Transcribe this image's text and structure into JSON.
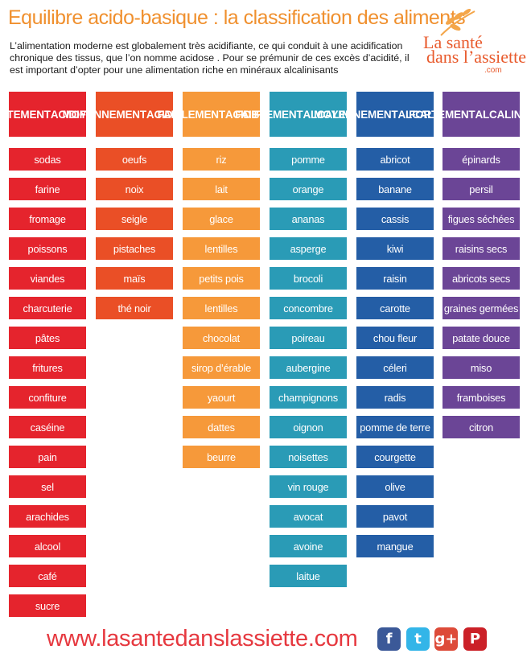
{
  "title": "Equilibre acido-basique : la classification des aliments",
  "intro": "L’alimentation moderne est globalement très acidifiante, ce qui conduit à une acidification chronique des tissus, que l’on nomme acidose . Pour se prémunir de ces excès d’acidité, il est important d’opter pour une alimentation riche en minéraux alcalinisants",
  "logo": {
    "line1": "La santé",
    "line2": "dans l’assiette",
    "line3": ".com",
    "icon": "wheat-leaf-icon"
  },
  "columns": [
    {
      "head1": "FORTEMENT",
      "head2": "ACIDIFIANT",
      "color": "#e5242d",
      "items": [
        "sodas",
        "farine",
        "fromage",
        "poissons",
        "viandes",
        "charcuterie",
        "pâtes",
        "fritures",
        "confiture",
        "caséine",
        "pain",
        "sel",
        "arachides",
        "alcool",
        "café",
        "sucre"
      ]
    },
    {
      "head1": "MOYENNEMENT",
      "head2": "ACIDIFIANT",
      "color": "#ea4f26",
      "items": [
        "oeufs",
        "noix",
        "seigle",
        "pistaches",
        "maïs",
        "thé noir"
      ]
    },
    {
      "head1": "FAIBLEMENT",
      "head2": "ACIDIFIANT",
      "color": "#f6993a",
      "items": [
        "riz",
        "lait",
        "glace",
        "lentilles",
        "petits pois",
        "lentilles",
        "chocolat",
        "sirop d’érable",
        "yaourt",
        "dattes",
        "beurre"
      ]
    },
    {
      "head1": "FAIBLEMENT",
      "head2": "ALCALINISANT",
      "color": "#2a9bb6",
      "items": [
        "pomme",
        "orange",
        "ananas",
        "asperge",
        "brocoli",
        "concombre",
        "poireau",
        "aubergine",
        "champignons",
        "oignon",
        "noisettes",
        "vin rouge",
        "avocat",
        "avoine",
        "laitue"
      ]
    },
    {
      "head1": "MOYENNEMENT",
      "head2": "ALCALINISANT",
      "color": "#245ea6",
      "items": [
        "abricot",
        "banane",
        "cassis",
        "kiwi",
        "raisin",
        "carotte",
        "chou fleur",
        "céleri",
        "radis",
        "pomme de terre",
        "courgette",
        "olive",
        "pavot",
        "mangue"
      ]
    },
    {
      "head1": "FORTEMENT",
      "head2": "ALCALINISANT",
      "color": "#6b4596",
      "items": [
        "épinards",
        "persil",
        "figues séchées",
        "raisins secs",
        "abricots secs",
        "graines germées",
        "patate douce",
        "miso",
        "framboises",
        "citron"
      ]
    }
  ],
  "footer": {
    "url": "www.lasantedanslassiette.com"
  },
  "social": [
    {
      "icon": "facebook-icon",
      "glyph": "f",
      "color": "#3b5998"
    },
    {
      "icon": "twitter-icon",
      "glyph": "t",
      "color": "#33b5e8"
    },
    {
      "icon": "google-plus-icon",
      "glyph": "g+",
      "color": "#dd4b39"
    },
    {
      "icon": "pinterest-icon",
      "glyph": "P",
      "color": "#cb2027"
    }
  ]
}
